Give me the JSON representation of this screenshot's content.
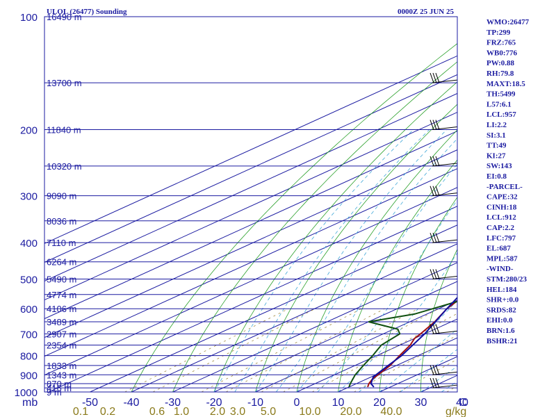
{
  "title_left": "ULOL (26477) Sounding",
  "title_right": "0000Z 25 JUN 25",
  "indices": [
    "WMO:26477",
    "TP:299",
    "FRZ:765",
    "WB0:776",
    "PW:0.88",
    "RH:79.8",
    "MAXT:18.5",
    "TH:5499",
    "L57:6.1",
    "LCL:957",
    "LI:2.2",
    "SI:3.1",
    "TT:49",
    "KI:27",
    "SW:143",
    "EI:0.8",
    "-PARCEL-",
    "CAPE:32",
    "CINH:18",
    "LCL:912",
    "CAP:2.2",
    "LFC:797",
    "EL:687",
    "MPL:587",
    "-WIND-",
    "STM:280/23",
    "HEL:184",
    "SHR+:0.0",
    "SRDS:82",
    "EHI:0.0",
    "BRN:1.6",
    "BSHR:21"
  ],
  "chart_data": {
    "type": "line",
    "title": "ULOL (26477) Sounding",
    "valid_time": "0000Z 25 JUN 25",
    "y_axis": {
      "unit_label": "mb",
      "scale": "log",
      "range": [
        1000,
        100
      ]
    },
    "x_axis": {
      "unit_label": "C",
      "range": [
        -50,
        40
      ],
      "ticks": [
        "-50",
        "-40",
        "-30",
        "-20",
        "-10",
        "0",
        "10",
        "20",
        "30",
        "40"
      ]
    },
    "mixing_ratio_axis": {
      "unit_label": "g/kg",
      "ticks": [
        "0.1",
        "0.2",
        "0.6",
        "1.0",
        "2.0",
        "3.0",
        "5.0",
        "10.0",
        "20.0",
        "40.0"
      ]
    },
    "pressure_levels": [
      {
        "p": 1000,
        "label": "1000",
        "height": "9 m"
      },
      {
        "p": 975,
        "label": "",
        "height": "416 m"
      },
      {
        "p": 950,
        "label": "",
        "height": "870 m"
      },
      {
        "p": 900,
        "label": "900",
        "height": "1343 m"
      },
      {
        "p": 850,
        "label": "",
        "height": "1833 m"
      },
      {
        "p": 800,
        "label": "800",
        "height": ""
      },
      {
        "p": 750,
        "label": "",
        "height": "2354 m"
      },
      {
        "p": 700,
        "label": "700",
        "height": "2907 m"
      },
      {
        "p": 650,
        "label": "",
        "height": "3489 m"
      },
      {
        "p": 600,
        "label": "600",
        "height": "4106 m"
      },
      {
        "p": 550,
        "label": "",
        "height": "4774 m"
      },
      {
        "p": 500,
        "label": "500",
        "height": "5490 m"
      },
      {
        "p": 450,
        "label": "",
        "height": "6264 m"
      },
      {
        "p": 400,
        "label": "400",
        "height": "7110 m"
      },
      {
        "p": 350,
        "label": "",
        "height": "8036 m"
      },
      {
        "p": 300,
        "label": "300",
        "height": "9090 m"
      },
      {
        "p": 250,
        "label": "",
        "height": "10320 m"
      },
      {
        "p": 200,
        "label": "200",
        "height": "11840 m"
      },
      {
        "p": 150,
        "label": "",
        "height": "13700 m"
      },
      {
        "p": 100,
        "label": "100",
        "height": "16490 m"
      }
    ],
    "series": [
      {
        "name": "temperature",
        "color": "#a01010",
        "points": [
          {
            "p": 970,
            "t": 14.5
          },
          {
            "p": 950,
            "t": 13
          },
          {
            "p": 925,
            "t": 11.5
          },
          {
            "p": 900,
            "t": 10.5
          },
          {
            "p": 850,
            "t": 8.5
          },
          {
            "p": 800,
            "t": 5.5
          },
          {
            "p": 750,
            "t": 2.5
          },
          {
            "p": 720,
            "t": 0
          },
          {
            "p": 700,
            "t": -1
          },
          {
            "p": 650,
            "t": -4
          },
          {
            "p": 600,
            "t": -8
          },
          {
            "p": 550,
            "t": -11
          },
          {
            "p": 500,
            "t": -15
          },
          {
            "p": 450,
            "t": -21
          },
          {
            "p": 400,
            "t": -27
          },
          {
            "p": 350,
            "t": -35
          },
          {
            "p": 330,
            "t": -38
          },
          {
            "p": 300,
            "t": -41
          },
          {
            "p": 270,
            "t": -43
          },
          {
            "p": 250,
            "t": -44
          },
          {
            "p": 220,
            "t": -49
          },
          {
            "p": 200,
            "t": -53
          },
          {
            "p": 170,
            "t": -54
          },
          {
            "p": 150,
            "t": -56
          },
          {
            "p": 120,
            "t": -60
          },
          {
            "p": 100,
            "t": -65
          }
        ]
      },
      {
        "name": "dewpoint",
        "color": "#105010",
        "points": [
          {
            "p": 970,
            "t": 10
          },
          {
            "p": 950,
            "t": 8.5
          },
          {
            "p": 900,
            "t": 5
          },
          {
            "p": 850,
            "t": 2
          },
          {
            "p": 800,
            "t": -1
          },
          {
            "p": 750,
            "t": -4.5
          },
          {
            "p": 700,
            "t": -6
          },
          {
            "p": 680,
            "t": -9
          },
          {
            "p": 650,
            "t": -20
          },
          {
            "p": 620,
            "t": -13
          },
          {
            "p": 570,
            "t": -9
          },
          {
            "p": 500,
            "t": -15
          },
          {
            "p": 450,
            "t": -25
          },
          {
            "p": 420,
            "t": -32
          },
          {
            "p": 400,
            "t": -33
          },
          {
            "p": 350,
            "t": -42
          },
          {
            "p": 320,
            "t": -48
          },
          {
            "p": 290,
            "t": -52
          },
          {
            "p": 270,
            "t": -54
          },
          {
            "p": 250,
            "t": -63
          },
          {
            "p": 200,
            "t": -63
          },
          {
            "p": 170,
            "t": -65
          },
          {
            "p": 150,
            "t": -70
          },
          {
            "p": 120,
            "t": -71
          },
          {
            "p": 100,
            "t": -74
          }
        ]
      },
      {
        "name": "parcel",
        "color": "#1010a0",
        "points": [
          {
            "p": 970,
            "t": 16
          },
          {
            "p": 950,
            "t": 13.5
          },
          {
            "p": 912,
            "t": 10.5
          },
          {
            "p": 850,
            "t": 8
          },
          {
            "p": 800,
            "t": 6
          },
          {
            "p": 700,
            "t": 0
          },
          {
            "p": 600,
            "t": -8
          },
          {
            "p": 500,
            "t": -17
          },
          {
            "p": 450,
            "t": -22
          },
          {
            "p": 400,
            "t": -31
          },
          {
            "p": 350,
            "t": -40
          },
          {
            "p": 300,
            "t": -50
          },
          {
            "p": 250,
            "t": -61
          },
          {
            "p": 200,
            "t": -69
          },
          {
            "p": 150,
            "t": -80
          },
          {
            "p": 120,
            "t": -90
          },
          {
            "p": 105,
            "t": -97
          }
        ]
      }
    ],
    "wind_barbs": [
      {
        "p": 975
      },
      {
        "p": 900
      },
      {
        "p": 700
      },
      {
        "p": 500
      },
      {
        "p": 400
      },
      {
        "p": 300
      },
      {
        "p": 250
      },
      {
        "p": 200
      },
      {
        "p": 150
      }
    ]
  }
}
